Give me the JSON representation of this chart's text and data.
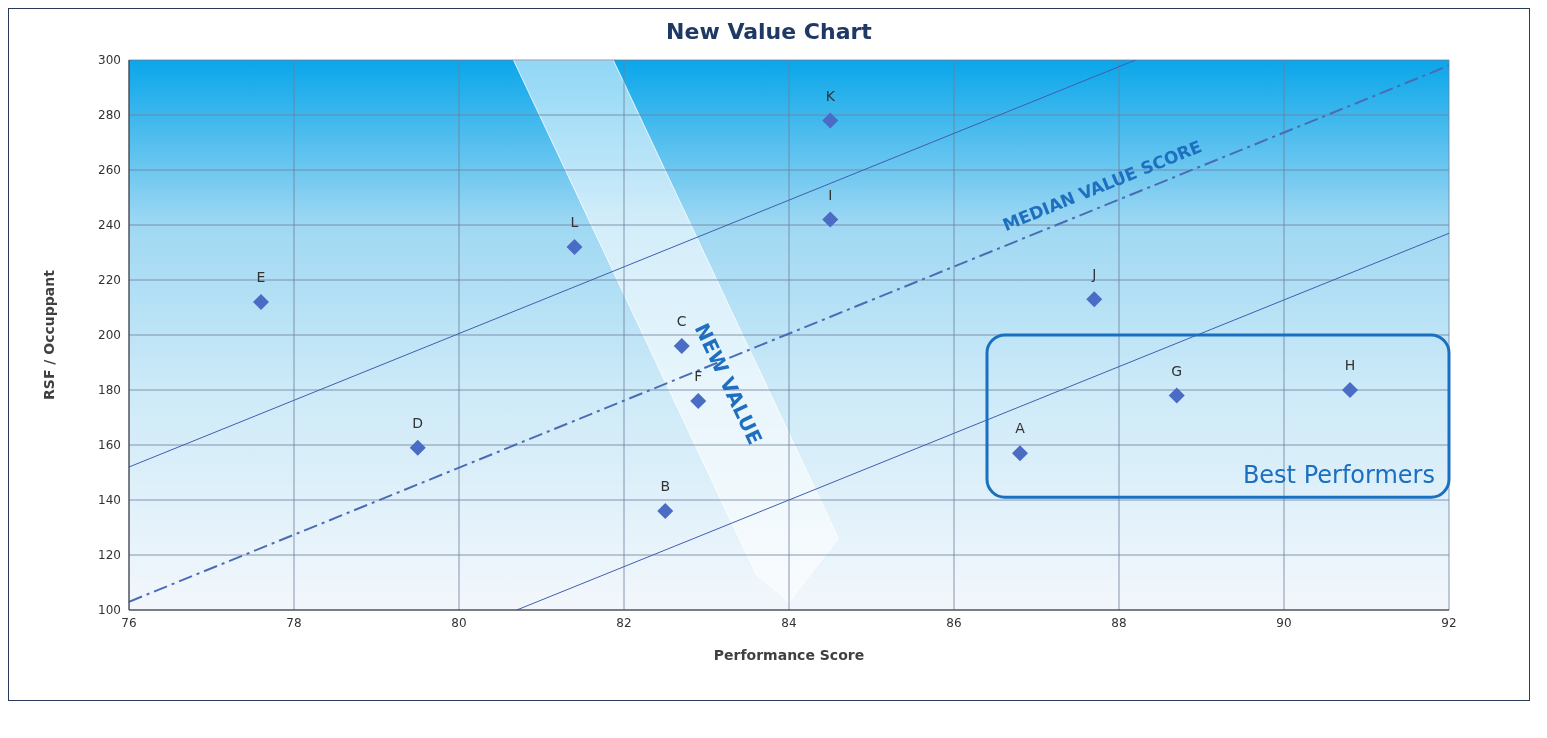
{
  "chart_data": {
    "type": "scatter",
    "title": "New Value Chart",
    "xlabel": "Performance Score",
    "ylabel": "RSF / Occuppant",
    "xlim": [
      76,
      92
    ],
    "xticks": [
      76,
      78,
      80,
      82,
      84,
      86,
      88,
      90,
      92
    ],
    "ylim": [
      100,
      300
    ],
    "yticks": [
      100,
      120,
      140,
      160,
      180,
      200,
      220,
      240,
      260,
      280,
      300
    ],
    "grid": true,
    "series": [
      {
        "marker": "diamond",
        "color": "#4a6cc4",
        "x": [
          86.8,
          82.5,
          82.7,
          79.5,
          77.6,
          82.9,
          88.7,
          90.8,
          84.5,
          87.7,
          84.5,
          81.4
        ],
        "values": [
          157,
          136,
          196,
          159,
          212,
          176,
          178,
          180,
          242,
          213,
          278,
          232
        ]
      },
      {
        "type": "line",
        "marker": "none",
        "color": "#3f5fae",
        "line_style": "solid",
        "x": [
          76,
          88.2
        ],
        "values": [
          152,
          300
        ]
      },
      {
        "type": "line",
        "marker": "none",
        "color": "#4a6cb4",
        "line_style": "dashed",
        "x": [
          76,
          92
        ],
        "values": [
          103,
          298
        ]
      },
      {
        "type": "line",
        "marker": "none",
        "color": "#3f5fae",
        "line_style": "solid",
        "x": [
          80.7,
          92
        ],
        "values": [
          100,
          237
        ]
      }
    ],
    "annotations": [
      {
        "text": "A",
        "x": 86.8,
        "y": 157
      },
      {
        "text": "B",
        "x": 82.5,
        "y": 136
      },
      {
        "text": "C",
        "x": 82.7,
        "y": 196
      },
      {
        "text": "D",
        "x": 79.5,
        "y": 159
      },
      {
        "text": "E",
        "x": 77.6,
        "y": 212
      },
      {
        "text": "F",
        "x": 82.9,
        "y": 176
      },
      {
        "text": "G",
        "x": 88.7,
        "y": 178
      },
      {
        "text": "H",
        "x": 90.8,
        "y": 180
      },
      {
        "text": "I",
        "x": 84.5,
        "y": 242
      },
      {
        "text": "J",
        "x": 87.7,
        "y": 213
      },
      {
        "text": "K",
        "x": 84.5,
        "y": 278
      },
      {
        "text": "L",
        "x": 81.4,
        "y": 232
      },
      "MEDIAN VALUE SCORE",
      "NEW VALUE",
      "Best Performers"
    ]
  }
}
